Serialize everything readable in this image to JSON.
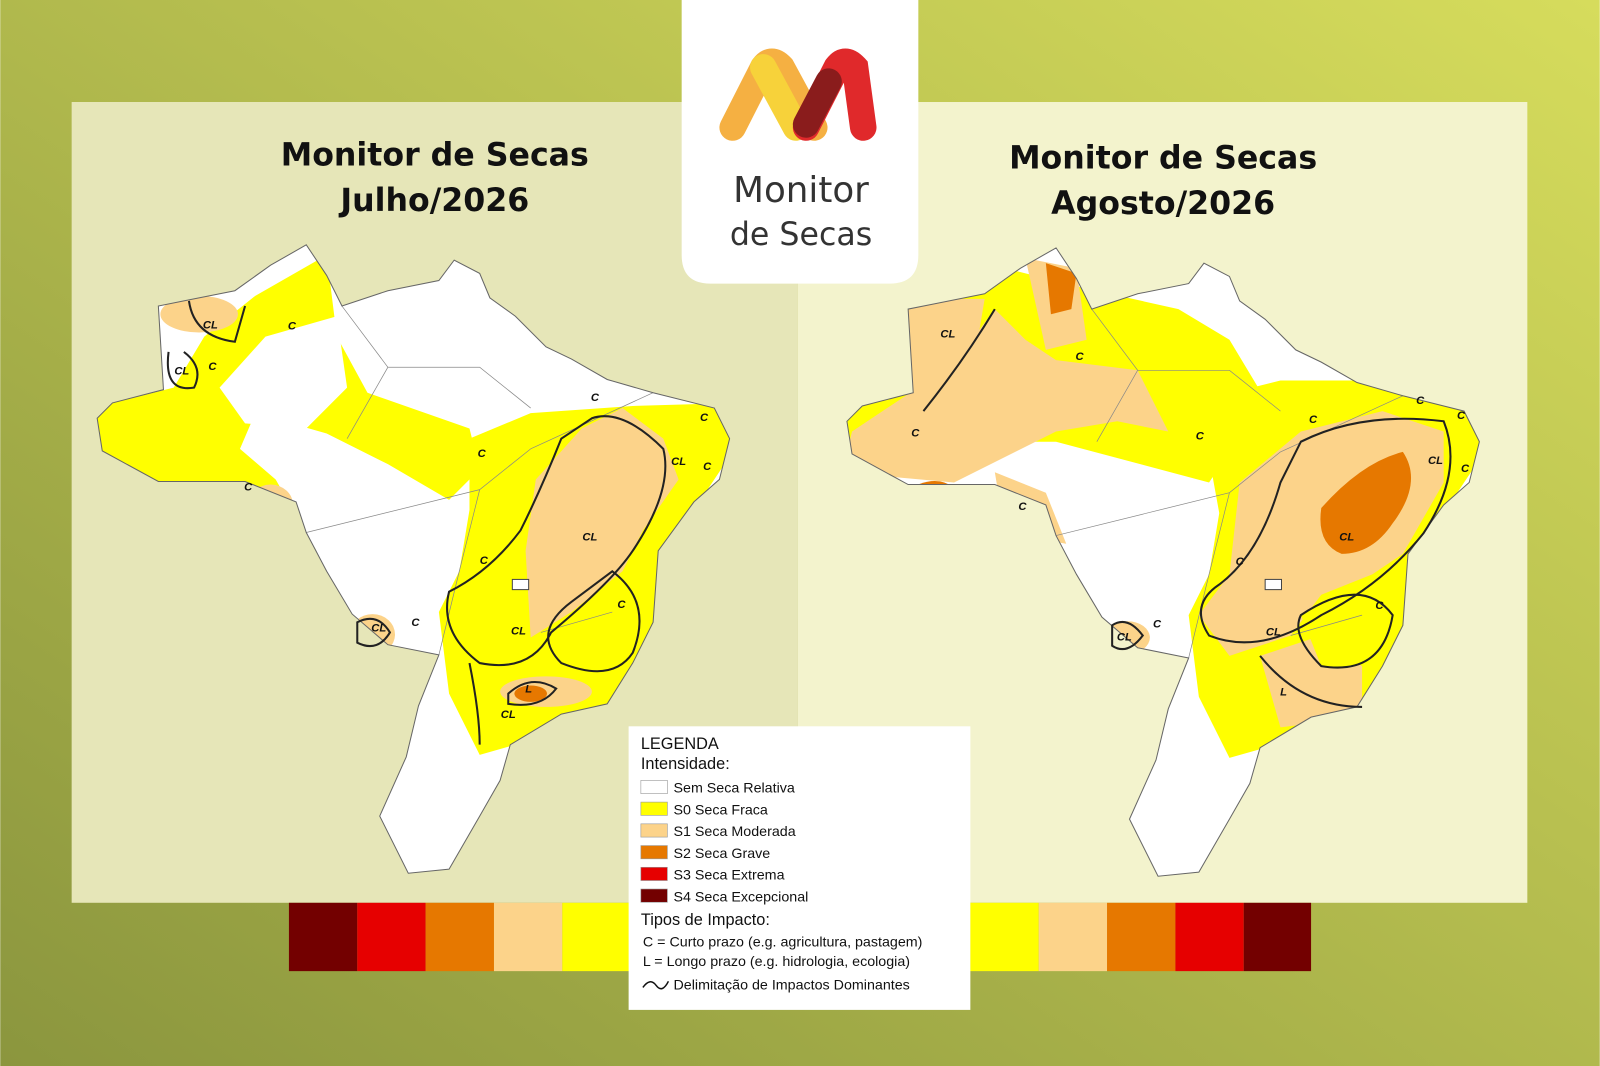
{
  "logo": {
    "line1": "Monitor",
    "line2": "de Secas"
  },
  "maps": [
    {
      "title": "Monitor de Secas",
      "subtitle": "Julho/2026",
      "labels": [
        "CL",
        "C",
        "CL",
        "C",
        "C",
        "C",
        "CL",
        "C",
        "C",
        "C",
        "CL",
        "C",
        "C",
        "CL",
        "C",
        "CL",
        "L",
        "CL"
      ]
    },
    {
      "title": "Monitor de Secas",
      "subtitle": "Agosto/2026",
      "labels": [
        "CL",
        "C",
        "C",
        "C",
        "C",
        "C",
        "C",
        "CL",
        "C",
        "C",
        "CL",
        "C",
        "C",
        "C",
        "CL",
        "CL",
        "L"
      ]
    }
  ],
  "legend": {
    "title": "LEGENDA",
    "intensity_heading": "Intensidade:",
    "items": [
      {
        "label": "Sem Seca Relativa",
        "color": "#ffffff"
      },
      {
        "label": "S0 Seca Fraca",
        "color": "#ffff00"
      },
      {
        "label": "S1 Seca Moderada",
        "color": "#fcd38a"
      },
      {
        "label": "S2 Seca Grave",
        "color": "#e67800"
      },
      {
        "label": "S3 Seca Extrema",
        "color": "#e60000"
      },
      {
        "label": "S4 Seca Excepcional",
        "color": "#730000"
      }
    ],
    "impact_heading": "Tipos de Impacto:",
    "impact_items": [
      "C = Curto prazo (e.g. agricultura, pastagem)",
      "L = Longo prazo (e.g. hidrologia, ecologia)"
    ],
    "boundary": "Delimitação de Impactos Dominantes"
  }
}
